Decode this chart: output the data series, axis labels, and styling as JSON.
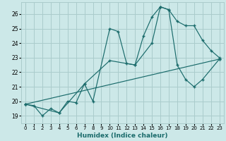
{
  "xlabel": "Humidex (Indice chaleur)",
  "bg_color": "#cce8e8",
  "grid_color": "#aacccc",
  "line_color": "#1a6b6b",
  "xlim": [
    -0.5,
    23.5
  ],
  "ylim": [
    18.5,
    26.8
  ],
  "yticks": [
    19,
    20,
    21,
    22,
    23,
    24,
    25,
    26
  ],
  "xticks": [
    0,
    1,
    2,
    3,
    4,
    5,
    6,
    7,
    8,
    9,
    10,
    11,
    12,
    13,
    14,
    15,
    16,
    17,
    18,
    19,
    20,
    21,
    22,
    23
  ],
  "series1_x": [
    0,
    1,
    2,
    3,
    4,
    5,
    6,
    7,
    8,
    10,
    11,
    12,
    13,
    14,
    15,
    16,
    17,
    18,
    19,
    20,
    21,
    22,
    23
  ],
  "series1_y": [
    19.8,
    19.7,
    19.0,
    19.5,
    19.2,
    20.0,
    19.9,
    21.2,
    20.0,
    25.0,
    24.8,
    22.6,
    22.5,
    24.5,
    25.8,
    26.5,
    26.3,
    25.5,
    25.2,
    25.2,
    24.2,
    23.5,
    23.0
  ],
  "series2_x": [
    0,
    4,
    7,
    10,
    13,
    15,
    16,
    17,
    18,
    19,
    20,
    21,
    23
  ],
  "series2_y": [
    19.8,
    19.2,
    21.2,
    22.8,
    22.5,
    24.0,
    26.5,
    26.3,
    22.5,
    21.5,
    21.0,
    21.5,
    22.9
  ],
  "series3_x": [
    0,
    23
  ],
  "series3_y": [
    19.8,
    22.9
  ]
}
